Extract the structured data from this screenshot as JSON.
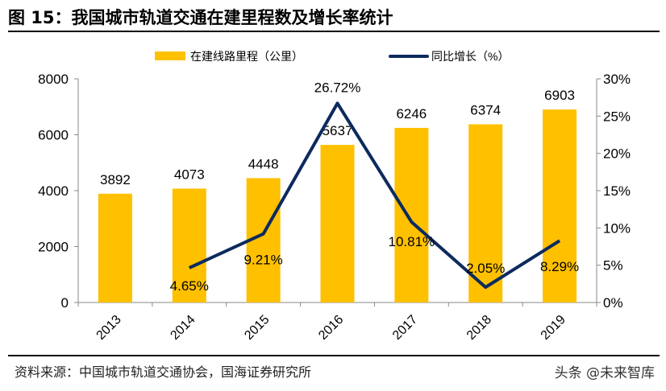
{
  "title": "图 15：我国城市轨道交通在建里程数及增长率统计",
  "source": "资料来源：中国城市轨道交通协会，国海证券研究所",
  "watermark": "头条 @未来智库",
  "chart_data": {
    "type": "bar+line",
    "categories": [
      "2013",
      "2014",
      "2015",
      "2016",
      "2017",
      "2018",
      "2019"
    ],
    "series": [
      {
        "name": "在建线路里程（公里）",
        "type": "bar",
        "axis": "left",
        "color": "#FFC000",
        "values": [
          3892,
          4073,
          4448,
          5637,
          6246,
          6374,
          6903
        ],
        "labels": [
          "3892",
          "4073",
          "4448",
          "5637",
          "6246",
          "6374",
          "6903"
        ]
      },
      {
        "name": "同比增长（%）",
        "type": "line",
        "axis": "right",
        "color": "#0D2A5E",
        "values": [
          null,
          4.65,
          9.21,
          26.72,
          10.81,
          2.05,
          8.29
        ],
        "labels": [
          "",
          "4.65%",
          "9.21%",
          "26.72%",
          "10.81%",
          "2.05%",
          "8.29%"
        ]
      }
    ],
    "left_axis": {
      "ylim": [
        0,
        8000
      ],
      "ticks": [
        "0",
        "2000",
        "4000",
        "6000",
        "8000"
      ]
    },
    "right_axis": {
      "ylim": [
        0,
        30
      ],
      "ticks": [
        "0%",
        "5%",
        "10%",
        "15%",
        "20%",
        "25%",
        "30%"
      ]
    },
    "legend": "top",
    "grid": false
  }
}
